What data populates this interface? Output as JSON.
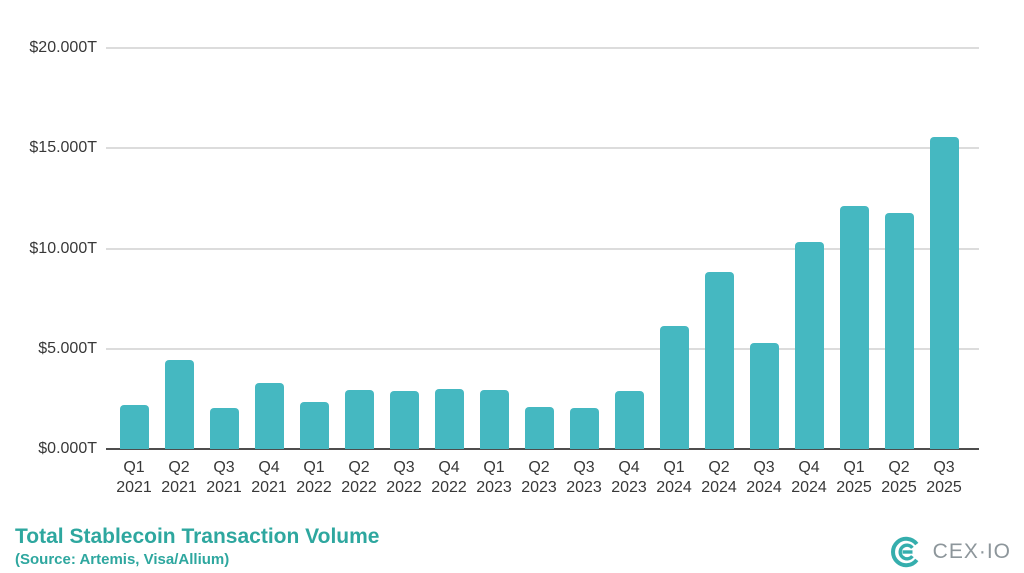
{
  "chart_data": {
    "type": "bar",
    "title": "Total Stablecoin Transaction Volume",
    "subtitle": "(Source: Artemis, Visa/Allium)",
    "categories": [
      {
        "quarter": "Q1",
        "year": "2021"
      },
      {
        "quarter": "Q2",
        "year": "2021"
      },
      {
        "quarter": "Q3",
        "year": "2021"
      },
      {
        "quarter": "Q4",
        "year": "2021"
      },
      {
        "quarter": "Q1",
        "year": "2022"
      },
      {
        "quarter": "Q2",
        "year": "2022"
      },
      {
        "quarter": "Q3",
        "year": "2022"
      },
      {
        "quarter": "Q4",
        "year": "2022"
      },
      {
        "quarter": "Q1",
        "year": "2023"
      },
      {
        "quarter": "Q2",
        "year": "2023"
      },
      {
        "quarter": "Q3",
        "year": "2023"
      },
      {
        "quarter": "Q4",
        "year": "2023"
      },
      {
        "quarter": "Q1",
        "year": "2024"
      },
      {
        "quarter": "Q2",
        "year": "2024"
      },
      {
        "quarter": "Q3",
        "year": "2024"
      },
      {
        "quarter": "Q4",
        "year": "2024"
      },
      {
        "quarter": "Q1",
        "year": "2025"
      },
      {
        "quarter": "Q2",
        "year": "2025"
      },
      {
        "quarter": "Q3",
        "year": "2025"
      }
    ],
    "values": [
      2.2,
      4.45,
      2.05,
      3.3,
      2.35,
      2.95,
      2.9,
      3.0,
      2.95,
      2.1,
      2.05,
      2.9,
      6.15,
      8.85,
      5.3,
      10.3,
      12.1,
      11.75,
      15.55
    ],
    "values_unit": "trillion USD",
    "y_ticks": [
      {
        "label": "$0.000T",
        "value": 0
      },
      {
        "label": "$5.000T",
        "value": 5
      },
      {
        "label": "$10.000T",
        "value": 10
      },
      {
        "label": "$15.000T",
        "value": 15
      },
      {
        "label": "$20.000T",
        "value": 20
      }
    ],
    "ylim": [
      0,
      20
    ],
    "grid": true,
    "legend": false,
    "colors": {
      "bar": "#45b8c1",
      "gridline": "#dcdcdc",
      "axis_line": "#4d4d4d",
      "tick_text": "#383838",
      "title_text": "#2ea79f"
    }
  },
  "branding": {
    "logo_text": "CEX·IO",
    "logo_text_color": "#8d969b",
    "logo_mark_color": "#35aead"
  }
}
